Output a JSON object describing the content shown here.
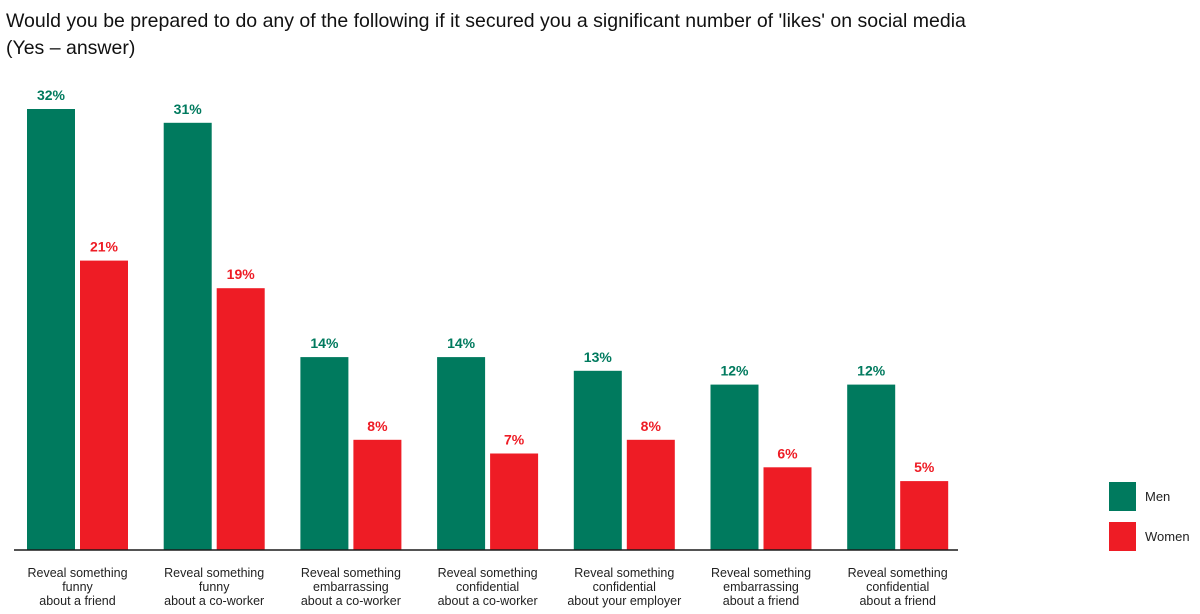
{
  "chart_data": {
    "type": "bar",
    "title": "Would you be prepared to do any of the following if it secured you a significant number of 'likes' on social media",
    "subtitle": "(Yes – answer)",
    "xlabel": "",
    "ylabel": "",
    "ylim": [
      0,
      32
    ],
    "grid": false,
    "legend_position": "right",
    "value_suffix": "%",
    "categories": [
      [
        "Reveal something",
        "funny",
        "about a friend"
      ],
      [
        "Reveal something",
        "funny",
        "about a co-worker"
      ],
      [
        "Reveal something",
        "embarrassing",
        "about a co-worker"
      ],
      [
        "Reveal something",
        "confidential",
        "about a co-worker"
      ],
      [
        "Reveal something",
        "confidential",
        "about your employer"
      ],
      [
        "Reveal something",
        "embarrassing",
        "about a friend"
      ],
      [
        "Reveal something",
        "confidential",
        "about a friend"
      ]
    ],
    "series": [
      {
        "name": "Men",
        "color": "#007a5e",
        "values": [
          32,
          31,
          14,
          14,
          13,
          12,
          12
        ]
      },
      {
        "name": "Women",
        "color": "#ee1c25",
        "values": [
          21,
          19,
          8,
          7,
          8,
          6,
          5
        ]
      }
    ]
  }
}
